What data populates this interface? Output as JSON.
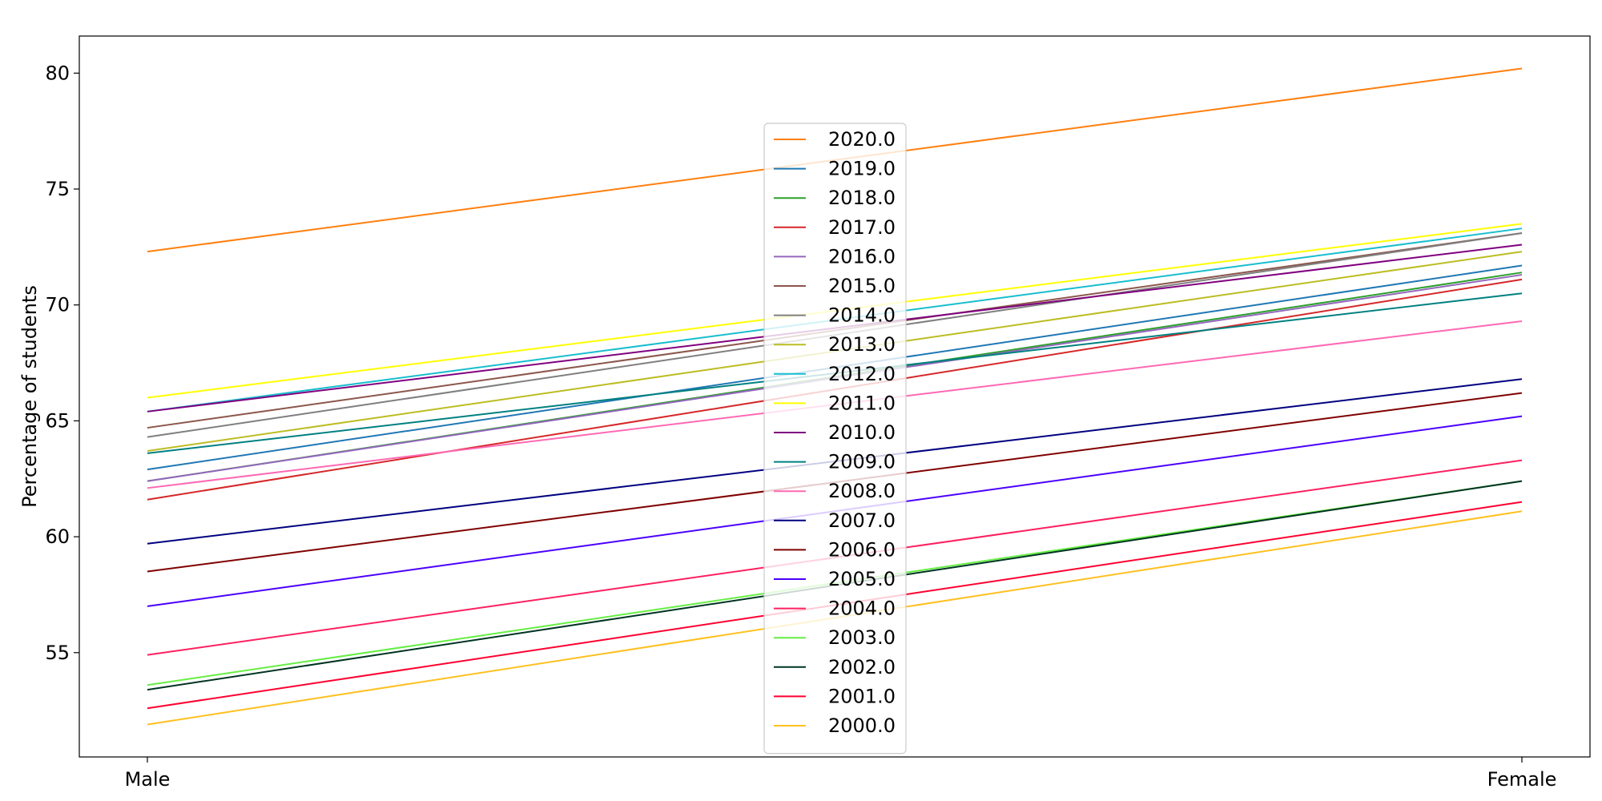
{
  "chart_data": {
    "type": "line",
    "title": "",
    "xlabel": "",
    "ylabel": "Percentage of students",
    "categories": [
      "Male",
      "Female"
    ],
    "ylim": [
      50.5,
      81.6
    ],
    "yticks": [
      55,
      60,
      65,
      70,
      75,
      80
    ],
    "grid": false,
    "legend_position": "center",
    "series": [
      {
        "name": "2020.0",
        "color": "#ff7f0e",
        "values": [
          72.3,
          80.2
        ]
      },
      {
        "name": "2019.0",
        "color": "#1f77b4",
        "values": [
          62.9,
          71.7
        ]
      },
      {
        "name": "2018.0",
        "color": "#2ca02c",
        "values": [
          62.4,
          71.4
        ]
      },
      {
        "name": "2017.0",
        "color": "#d62728",
        "values": [
          61.6,
          71.1
        ]
      },
      {
        "name": "2016.0",
        "color": "#9467bd",
        "values": [
          62.4,
          71.3
        ]
      },
      {
        "name": "2015.0",
        "color": "#8c564b",
        "values": [
          64.7,
          73.1
        ]
      },
      {
        "name": "2014.0",
        "color": "#7f7f7f",
        "values": [
          64.3,
          73.1
        ]
      },
      {
        "name": "2013.0",
        "color": "#bcbd22",
        "values": [
          63.7,
          72.3
        ]
      },
      {
        "name": "2012.0",
        "color": "#17becf",
        "values": [
          65.4,
          73.3
        ]
      },
      {
        "name": "2011.0",
        "color": "#ffff00",
        "values": [
          66.0,
          73.5
        ]
      },
      {
        "name": "2010.0",
        "color": "#800080",
        "values": [
          65.4,
          72.6
        ]
      },
      {
        "name": "2009.0",
        "color": "#008080",
        "values": [
          63.6,
          70.5
        ]
      },
      {
        "name": "2008.0",
        "color": "#ff69b4",
        "values": [
          62.1,
          69.3
        ]
      },
      {
        "name": "2007.0",
        "color": "#000080",
        "values": [
          59.7,
          66.8
        ]
      },
      {
        "name": "2006.0",
        "color": "#800000",
        "values": [
          58.5,
          66.2
        ]
      },
      {
        "name": "2005.0",
        "color": "#4b00ff",
        "values": [
          57.0,
          65.2
        ]
      },
      {
        "name": "2004.0",
        "color": "#ff2060",
        "values": [
          54.9,
          63.3
        ]
      },
      {
        "name": "2003.0",
        "color": "#66ee44",
        "values": [
          53.6,
          62.4
        ]
      },
      {
        "name": "2002.0",
        "color": "#003322",
        "values": [
          53.4,
          62.4
        ]
      },
      {
        "name": "2001.0",
        "color": "#ff0030",
        "values": [
          52.6,
          61.5
        ]
      },
      {
        "name": "2000.0",
        "color": "#ffc020",
        "values": [
          51.9,
          61.1
        ]
      }
    ]
  }
}
